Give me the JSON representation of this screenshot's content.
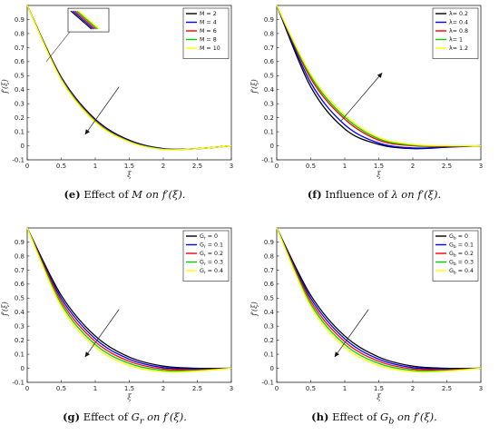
{
  "colors": [
    "#000000",
    "#0000ff",
    "#ff0000",
    "#00cc00",
    "#ffff00"
  ],
  "chart_data": [
    {
      "type": "line",
      "panel_label": "(e)",
      "caption_prefix": "Effect of",
      "caption_param": "M",
      "caption_rest": "on f′(ξ).",
      "xlabel": "ξ",
      "ylabel": "f′(ξ)",
      "xlim": [
        0,
        3
      ],
      "ylim": [
        -0.1,
        1
      ],
      "xticks": [
        "0",
        "0.5",
        "1",
        "1.5",
        "2",
        "2.5",
        "3"
      ],
      "yticks": [
        "-0.1",
        "0",
        "0.1",
        "0.2",
        "0.3",
        "0.4",
        "0.5",
        "0.6",
        "0.7",
        "0.8",
        "0.9"
      ],
      "legend_position": "top-right",
      "arrow": "down-left",
      "inset_zoom": true,
      "series": [
        {
          "name": "M =  2",
          "x": [
            0,
            0.5,
            1,
            1.5,
            2,
            2.5,
            3
          ],
          "values": [
            1,
            0.49,
            0.19,
            0.04,
            -0.02,
            -0.02,
            0
          ]
        },
        {
          "name": "M =  4",
          "x": [
            0,
            0.5,
            1,
            1.5,
            2,
            2.5,
            3
          ],
          "values": [
            1,
            0.485,
            0.185,
            0.035,
            -0.022,
            -0.02,
            0
          ]
        },
        {
          "name": "M =  6",
          "x": [
            0,
            0.5,
            1,
            1.5,
            2,
            2.5,
            3
          ],
          "values": [
            1,
            0.48,
            0.18,
            0.032,
            -0.024,
            -0.02,
            0
          ]
        },
        {
          "name": "M =  8",
          "x": [
            0,
            0.5,
            1,
            1.5,
            2,
            2.5,
            3
          ],
          "values": [
            1,
            0.475,
            0.175,
            0.03,
            -0.025,
            -0.02,
            0
          ]
        },
        {
          "name": "M = 10",
          "x": [
            0,
            0.5,
            1,
            1.5,
            2,
            2.5,
            3
          ],
          "values": [
            1,
            0.47,
            0.17,
            0.028,
            -0.026,
            -0.02,
            0
          ]
        }
      ]
    },
    {
      "type": "line",
      "panel_label": "(f)",
      "caption_prefix": "Influence of",
      "caption_param": "λ",
      "caption_rest": "on f′(ξ).",
      "xlabel": "ξ",
      "ylabel": "f′(ξ)",
      "xlim": [
        0,
        3
      ],
      "ylim": [
        -0.1,
        1
      ],
      "xticks": [
        "0",
        "0.5",
        "1",
        "1.5",
        "2",
        "2.5",
        "3"
      ],
      "yticks": [
        "-0.1",
        "0",
        "0.1",
        "0.2",
        "0.3",
        "0.4",
        "0.5",
        "0.6",
        "0.7",
        "0.8",
        "0.9"
      ],
      "legend_position": "top-right",
      "arrow": "up-right",
      "inset_zoom": false,
      "series": [
        {
          "name": "λ= 0.2",
          "x": [
            0,
            0.5,
            1,
            1.5,
            2,
            2.5,
            3
          ],
          "values": [
            1,
            0.42,
            0.12,
            0.01,
            -0.02,
            -0.01,
            0
          ]
        },
        {
          "name": "λ= 0.4",
          "x": [
            0,
            0.5,
            1,
            1.5,
            2,
            2.5,
            3
          ],
          "values": [
            1,
            0.45,
            0.15,
            0.02,
            -0.015,
            -0.008,
            0
          ]
        },
        {
          "name": "λ= 0.8",
          "x": [
            0,
            0.5,
            1,
            1.5,
            2,
            2.5,
            3
          ],
          "values": [
            1,
            0.48,
            0.19,
            0.04,
            0,
            -0.003,
            0
          ]
        },
        {
          "name": "λ=   1",
          "x": [
            0,
            0.5,
            1,
            1.5,
            2,
            2.5,
            3
          ],
          "values": [
            1,
            0.495,
            0.205,
            0.05,
            0.005,
            0,
            0
          ]
        },
        {
          "name": "λ= 1.2",
          "x": [
            0,
            0.5,
            1,
            1.5,
            2,
            2.5,
            3
          ],
          "values": [
            1,
            0.51,
            0.22,
            0.06,
            0.01,
            0,
            0
          ]
        }
      ]
    },
    {
      "type": "line",
      "panel_label": "(g)",
      "caption_prefix": "Effect of",
      "caption_param": "G",
      "caption_sub": "r",
      "caption_rest": "on f′(ξ).",
      "xlabel": "ξ",
      "ylabel": "f′(ξ)",
      "xlim": [
        0,
        3
      ],
      "ylim": [
        -0.1,
        1
      ],
      "xticks": [
        "0",
        "0.5",
        "1",
        "1.5",
        "2",
        "2.5",
        "3"
      ],
      "yticks": [
        "-0.1",
        "0",
        "0.1",
        "0.2",
        "0.3",
        "0.4",
        "0.5",
        "0.6",
        "0.7",
        "0.8",
        "0.9"
      ],
      "legend_position": "top-right",
      "arrow": "down-left",
      "inset_zoom": false,
      "series": [
        {
          "name": "G  =  0",
          "sub": "r",
          "x": [
            0,
            0.5,
            1,
            1.5,
            2,
            2.5,
            3
          ],
          "values": [
            1,
            0.52,
            0.23,
            0.08,
            0.015,
            0,
            0
          ]
        },
        {
          "name": "G  = 0.1",
          "sub": "r",
          "x": [
            0,
            0.5,
            1,
            1.5,
            2,
            2.5,
            3
          ],
          "values": [
            1,
            0.5,
            0.21,
            0.065,
            0.005,
            -0.005,
            0
          ]
        },
        {
          "name": "G  = 0.2",
          "sub": "r",
          "x": [
            0,
            0.5,
            1,
            1.5,
            2,
            2.5,
            3
          ],
          "values": [
            1,
            0.48,
            0.19,
            0.05,
            -0.005,
            -0.01,
            0
          ]
        },
        {
          "name": "G  = 0.3",
          "sub": "r",
          "x": [
            0,
            0.5,
            1,
            1.5,
            2,
            2.5,
            3
          ],
          "values": [
            1,
            0.46,
            0.17,
            0.035,
            -0.015,
            -0.015,
            0
          ]
        },
        {
          "name": "G  = 0.4",
          "sub": "r",
          "x": [
            0,
            0.5,
            1,
            1.5,
            2,
            2.5,
            3
          ],
          "values": [
            1,
            0.44,
            0.15,
            0.02,
            -0.025,
            -0.02,
            0
          ]
        }
      ]
    },
    {
      "type": "line",
      "panel_label": "(h)",
      "caption_prefix": "Effect of",
      "caption_param": "G",
      "caption_sub": "b",
      "caption_rest": "on f′(ξ).",
      "xlabel": "ξ",
      "ylabel": "f′(ξ)",
      "xlim": [
        0,
        3
      ],
      "ylim": [
        -0.1,
        1
      ],
      "xticks": [
        "0",
        "0.5",
        "1",
        "1.5",
        "2",
        "2.5",
        "3"
      ],
      "yticks": [
        "-0.1",
        "0",
        "0.1",
        "0.2",
        "0.3",
        "0.4",
        "0.5",
        "0.6",
        "0.7",
        "0.8",
        "0.9"
      ],
      "legend_position": "top-right",
      "arrow": "down-left",
      "inset_zoom": false,
      "series": [
        {
          "name": "G  =  0",
          "sub": "b",
          "x": [
            0,
            0.5,
            1,
            1.5,
            2,
            2.5,
            3
          ],
          "values": [
            1,
            0.52,
            0.23,
            0.08,
            0.015,
            0,
            0
          ]
        },
        {
          "name": "G  = 0.1",
          "sub": "b",
          "x": [
            0,
            0.5,
            1,
            1.5,
            2,
            2.5,
            3
          ],
          "values": [
            1,
            0.5,
            0.21,
            0.065,
            0.005,
            -0.005,
            0
          ]
        },
        {
          "name": "G  = 0.2",
          "sub": "b",
          "x": [
            0,
            0.5,
            1,
            1.5,
            2,
            2.5,
            3
          ],
          "values": [
            1,
            0.48,
            0.19,
            0.05,
            -0.005,
            -0.01,
            0
          ]
        },
        {
          "name": "G  = 0.3",
          "sub": "b",
          "x": [
            0,
            0.5,
            1,
            1.5,
            2,
            2.5,
            3
          ],
          "values": [
            1,
            0.46,
            0.17,
            0.035,
            -0.015,
            -0.015,
            0
          ]
        },
        {
          "name": "G  = 0.4",
          "sub": "b",
          "x": [
            0,
            0.5,
            1,
            1.5,
            2,
            2.5,
            3
          ],
          "values": [
            1,
            0.44,
            0.15,
            0.02,
            -0.025,
            -0.02,
            0
          ]
        }
      ]
    }
  ]
}
